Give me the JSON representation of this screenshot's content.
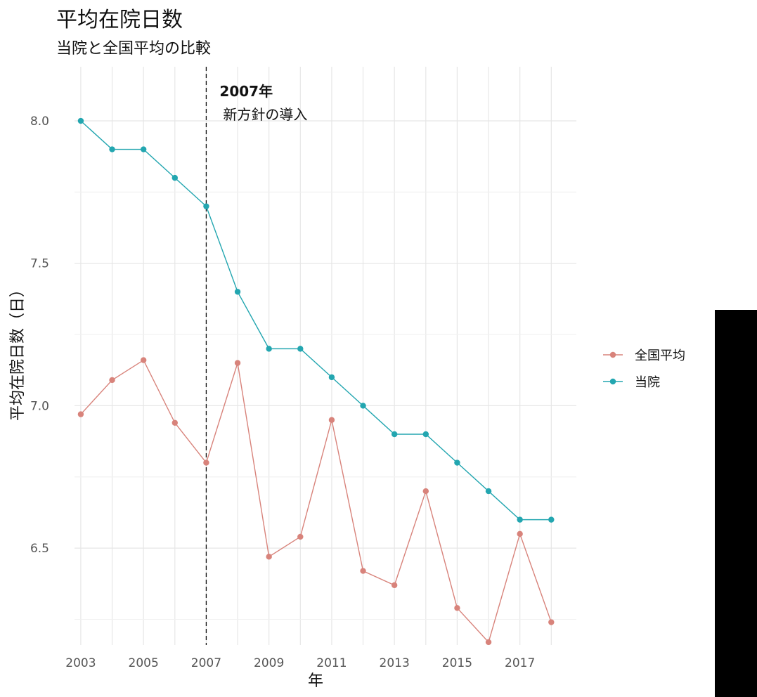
{
  "chart_data": {
    "type": "line",
    "title": "平均在院日数",
    "subtitle": "当院と全国平均の比較",
    "xlabel": "年",
    "ylabel": "平均在院日数（日）",
    "x": [
      2003,
      2004,
      2005,
      2006,
      2007,
      2008,
      2009,
      2010,
      2011,
      2012,
      2013,
      2014,
      2015,
      2016,
      2017,
      2018
    ],
    "x_ticks": [
      "2003",
      "2005",
      "2007",
      "2009",
      "2011",
      "2013",
      "2015",
      "2017"
    ],
    "y_ticks": [
      "6.5",
      "7.0",
      "7.5",
      "8.0"
    ],
    "xlim": [
      2002.8,
      2018.8
    ],
    "ylim": [
      6.16,
      8.19
    ],
    "grid": true,
    "legend_position": "right",
    "series": [
      {
        "name": "全国平均",
        "color": "#D8837B",
        "values": [
          6.97,
          7.09,
          7.16,
          6.94,
          6.8,
          7.15,
          6.47,
          6.54,
          6.95,
          6.42,
          6.37,
          6.7,
          6.29,
          6.17,
          6.55,
          6.24
        ]
      },
      {
        "name": "当院",
        "color": "#23A6B0",
        "values": [
          8.0,
          7.9,
          7.9,
          7.8,
          7.7,
          7.4,
          7.2,
          7.2,
          7.1,
          7.0,
          6.9,
          6.9,
          6.8,
          6.7,
          6.6,
          6.6
        ]
      }
    ],
    "annotation": {
      "x": 2007,
      "line1": "2007年",
      "line2": "新方針の導入"
    }
  }
}
